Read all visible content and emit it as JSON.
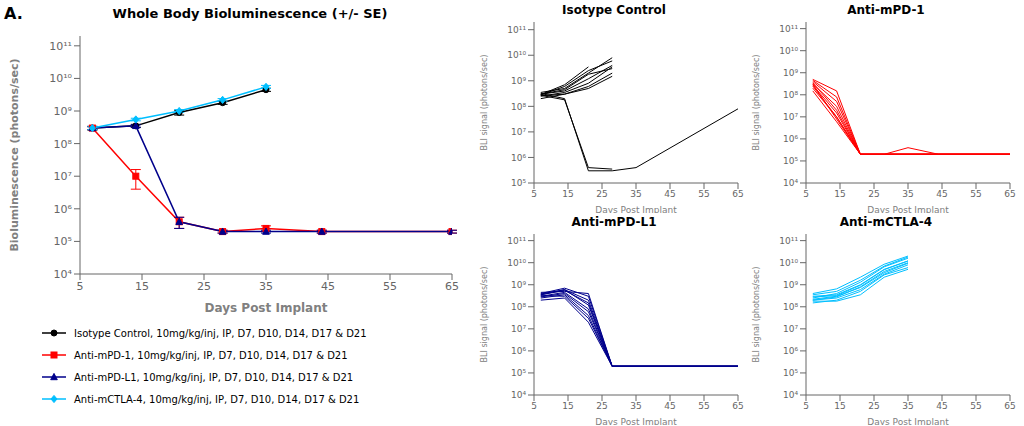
{
  "chart_data": [
    {
      "type": "line",
      "title": "Whole Body Bioluminescence (+/- SE)",
      "annotations": [
        "A."
      ],
      "x_label": "Days Post Implant",
      "y_label": "Bioluminescence (photons/sec)",
      "x": [
        7,
        14,
        21,
        28,
        35,
        44,
        65
      ],
      "log": "y",
      "grid": false,
      "legend": "bottom",
      "xlim": [
        5,
        65
      ],
      "xticks": [
        5,
        15,
        25,
        35,
        45,
        55,
        65
      ],
      "ylim": [
        10000.0,
        200000000000.0
      ],
      "yticks": [
        {
          "value": 10000.0,
          "label": "10⁴"
        },
        {
          "value": 100000.0,
          "label": "10⁵"
        },
        {
          "value": 1000000.0,
          "label": "10⁶"
        },
        {
          "value": 10000000.0,
          "label": "10⁷"
        },
        {
          "value": 100000000.0,
          "label": "10⁸"
        },
        {
          "value": 1000000000.0,
          "label": "10⁹"
        },
        {
          "value": 10000000000.0,
          "label": "10¹⁰"
        },
        {
          "value": 100000000000.0,
          "label": "10¹¹"
        }
      ],
      "series": [
        {
          "name": "Isotype Control, 10mg/kg/inj, IP, D7, D10, D14, D17 & D21",
          "color": "#000000",
          "marker": "circle",
          "values": [
            300000000.0,
            350000000.0,
            900000000.0,
            1800000000.0,
            4500000000.0,
            null,
            null
          ],
          "error_low": [
            40000000.0,
            40000000.0,
            150000000.0,
            200000000.0,
            500000000.0,
            null,
            null
          ],
          "error_high": [
            40000000.0,
            40000000.0,
            150000000.0,
            200000000.0,
            500000000.0,
            null,
            null
          ]
        },
        {
          "name": "Anti-mPD-1, 10mg/kg/inj, IP, D7, D10, D14, D17 & D21",
          "color": "#ff0000",
          "marker": "square",
          "values": [
            300000000.0,
            10000000.0,
            400000.0,
            200000.0,
            250000.0,
            200000.0,
            200000.0
          ],
          "error_low": [
            30000000.0,
            6000000.0,
            150000.0,
            20000.0,
            50000.0,
            20000.0,
            20000.0
          ],
          "error_high": [
            30000000.0,
            6000000.0,
            150000.0,
            20000.0,
            50000.0,
            20000.0,
            20000.0
          ]
        },
        {
          "name": "Anti-mPD-L1, 10mg/kg/inj, IP, D7, D10, D14, D17 & D21",
          "color": "#00008B",
          "marker": "triangle",
          "values": [
            300000000.0,
            350000000.0,
            400000.0,
            200000.0,
            200000.0,
            200000.0,
            200000.0
          ],
          "error_low": [
            30000000.0,
            30000000.0,
            150000.0,
            20000.0,
            20000.0,
            20000.0,
            20000.0
          ],
          "error_high": [
            30000000.0,
            30000000.0,
            150000.0,
            20000.0,
            20000.0,
            20000.0,
            20000.0
          ]
        },
        {
          "name": "Anti-mCTLA-4, 10mg/kg/inj, IP, D7, D10, D14, D17 & D21",
          "color": "#00BFFF",
          "marker": "diamond",
          "values": [
            300000000.0,
            550000000.0,
            1000000000.0,
            2200000000.0,
            5500000000.0,
            null,
            null
          ],
          "error_low": [
            30000000.0,
            50000000.0,
            100000000.0,
            200000000.0,
            600000000.0,
            null,
            null
          ],
          "error_high": [
            30000000.0,
            50000000.0,
            100000000.0,
            200000000.0,
            600000000.0,
            null,
            null
          ]
        }
      ]
    },
    {
      "type": "line",
      "title": "Isotype Control",
      "x_label": "Days Post Implant",
      "y_label": "BLI signal (photons/sec)",
      "x": [
        7,
        14,
        21,
        28,
        35,
        44,
        65
      ],
      "log": "y",
      "grid": false,
      "xlim": [
        5,
        65
      ],
      "xticks": [
        5,
        15,
        25,
        35,
        45,
        55,
        65
      ],
      "ylim": [
        100000.0,
        200000000000.0
      ],
      "yticks": [
        {
          "value": 100000.0,
          "label": "10⁵"
        },
        {
          "value": 1000000.0,
          "label": "10⁶"
        },
        {
          "value": 10000000.0,
          "label": "10⁷"
        },
        {
          "value": 100000000.0,
          "label": "10⁸"
        },
        {
          "value": 1000000000.0,
          "label": "10⁹"
        },
        {
          "value": 10000000000.0,
          "label": "10¹⁰"
        },
        {
          "value": 100000000000.0,
          "label": "10¹¹"
        }
      ],
      "series": [
        {
          "color": "#000000",
          "values": [
            300000000.0,
            400000000.0,
            1200000000.0,
            4000000000.0,
            null,
            null,
            null
          ]
        },
        {
          "color": "#000000",
          "values": [
            250000000.0,
            350000000.0,
            800000000.0,
            3500000000.0,
            null,
            null,
            null
          ]
        },
        {
          "color": "#000000",
          "values": [
            280000000.0,
            600000000.0,
            2500000000.0,
            6000000000.0,
            null,
            null,
            null
          ]
        },
        {
          "color": "#000000",
          "values": [
            350000000.0,
            500000000.0,
            2000000000.0,
            8000000000.0,
            null,
            null,
            null
          ]
        },
        {
          "color": "#000000",
          "values": [
            200000000.0,
            300000000.0,
            600000000.0,
            2000000000.0,
            null,
            null,
            null
          ]
        },
        {
          "color": "#000000",
          "values": [
            320000000.0,
            200000000.0,
            300000.0,
            300000.0,
            400000.0,
            null,
            80000000.0
          ]
        },
        {
          "color": "#000000",
          "values": [
            270000000.0,
            180000000.0,
            400000.0,
            350000.0,
            null,
            null,
            null
          ]
        },
        {
          "color": "#000000",
          "values": [
            300000000.0,
            450000000.0,
            1800000000.0,
            3000000000.0,
            null,
            null,
            null
          ]
        },
        {
          "color": "#000000",
          "values": [
            290000000.0,
            700000000.0,
            3500000000.0,
            null,
            null,
            null,
            null
          ]
        },
        {
          "color": "#000000",
          "values": [
            260000000.0,
            300000000.0,
            500000000.0,
            1500000000.0,
            null,
            null,
            null
          ]
        }
      ]
    },
    {
      "type": "line",
      "title": "Anti-mPD-1",
      "x_label": "Days Post Implant",
      "y_label": "BLI signal (photons/sec)",
      "x": [
        7,
        14,
        21,
        28,
        35,
        44,
        65
      ],
      "log": "y",
      "grid": false,
      "xlim": [
        5,
        65
      ],
      "xticks": [
        5,
        15,
        25,
        35,
        45,
        55,
        65
      ],
      "ylim": [
        10000.0,
        200000000000.0
      ],
      "yticks": [
        {
          "value": 10000.0,
          "label": "10⁴"
        },
        {
          "value": 100000.0,
          "label": "10⁵"
        },
        {
          "value": 1000000.0,
          "label": "10⁶"
        },
        {
          "value": 10000000.0,
          "label": "10⁷"
        },
        {
          "value": 100000000.0,
          "label": "10⁸"
        },
        {
          "value": 1000000000.0,
          "label": "10⁹"
        },
        {
          "value": 10000000000.0,
          "label": "10¹⁰"
        },
        {
          "value": 100000000000.0,
          "label": "10¹¹"
        }
      ],
      "series": [
        {
          "color": "#ff0000",
          "values": [
            500000000.0,
            150000000.0,
            200000.0,
            200000.0,
            200000.0,
            200000.0,
            200000.0
          ]
        },
        {
          "color": "#ff0000",
          "values": [
            400000000.0,
            50000000.0,
            200000.0,
            200000.0,
            200000.0,
            200000.0,
            200000.0
          ]
        },
        {
          "color": "#ff0000",
          "values": [
            350000000.0,
            20000000.0,
            200000.0,
            200000.0,
            200000.0,
            200000.0,
            200000.0
          ]
        },
        {
          "color": "#ff0000",
          "values": [
            280000000.0,
            15000000.0,
            200000.0,
            200000.0,
            200000.0,
            200000.0,
            200000.0
          ]
        },
        {
          "color": "#ff0000",
          "values": [
            250000000.0,
            10000000.0,
            200000.0,
            200000.0,
            400000.0,
            200000.0,
            200000.0
          ]
        },
        {
          "color": "#ff0000",
          "values": [
            300000000.0,
            8000000.0,
            200000.0,
            200000.0,
            200000.0,
            200000.0,
            200000.0
          ]
        },
        {
          "color": "#ff0000",
          "values": [
            200000000.0,
            10000000.0,
            200000.0,
            200000.0,
            200000.0,
            200000.0,
            200000.0
          ]
        },
        {
          "color": "#ff0000",
          "values": [
            150000000.0,
            6000000.0,
            200000.0,
            200000.0,
            200000.0,
            200000.0,
            200000.0
          ]
        },
        {
          "color": "#ff0000",
          "values": [
            320000000.0,
            30000000.0,
            200000.0,
            200000.0,
            200000.0,
            200000.0,
            200000.0
          ]
        },
        {
          "color": "#ff0000",
          "values": [
            450000000.0,
            80000000.0,
            200000.0,
            200000.0,
            200000.0,
            200000.0,
            200000.0
          ]
        }
      ]
    },
    {
      "type": "line",
      "title": "Anti-mPD-L1",
      "x_label": "Days Post Implant",
      "y_label": "BLI signal (photons/sec)",
      "x": [
        7,
        14,
        21,
        28,
        35,
        44,
        65
      ],
      "log": "y",
      "grid": false,
      "xlim": [
        5,
        65
      ],
      "xticks": [
        5,
        15,
        25,
        35,
        45,
        55,
        65
      ],
      "ylim": [
        10000.0,
        200000000000.0
      ],
      "yticks": [
        {
          "value": 10000.0,
          "label": "10⁴"
        },
        {
          "value": 100000.0,
          "label": "10⁵"
        },
        {
          "value": 1000000.0,
          "label": "10⁶"
        },
        {
          "value": 10000000.0,
          "label": "10⁷"
        },
        {
          "value": 100000000.0,
          "label": "10⁸"
        },
        {
          "value": 1000000000.0,
          "label": "10⁹"
        },
        {
          "value": 10000000000.0,
          "label": "10¹⁰"
        },
        {
          "value": 100000000000.0,
          "label": "10¹¹"
        }
      ],
      "series": [
        {
          "color": "#00008B",
          "values": [
            450000000.0,
            500000000.0,
            400000000.0,
            200000.0,
            200000.0,
            200000.0,
            200000.0
          ]
        },
        {
          "color": "#00008B",
          "values": [
            350000000.0,
            600000000.0,
            200000000.0,
            200000.0,
            200000.0,
            200000.0,
            200000.0
          ]
        },
        {
          "color": "#00008B",
          "values": [
            300000000.0,
            450000000.0,
            80000000.0,
            200000.0,
            200000.0,
            200000.0,
            200000.0
          ]
        },
        {
          "color": "#00008B",
          "values": [
            250000000.0,
            350000000.0,
            40000000.0,
            200000.0,
            200000.0,
            200000.0,
            200000.0
          ]
        },
        {
          "color": "#00008B",
          "values": [
            200000000.0,
            250000000.0,
            20000000.0,
            200000.0,
            200000.0,
            200000.0,
            200000.0
          ]
        },
        {
          "color": "#00008B",
          "values": [
            350000000.0,
            550000000.0,
            150000000.0,
            200000.0,
            200000.0,
            200000.0,
            200000.0
          ]
        },
        {
          "color": "#00008B",
          "values": [
            280000000.0,
            400000000.0,
            60000000.0,
            200000.0,
            200000.0,
            200000.0,
            200000.0
          ]
        },
        {
          "color": "#00008B",
          "values": [
            320000000.0,
            300000000.0,
            30000000.0,
            200000.0,
            200000.0,
            200000.0,
            200000.0
          ]
        },
        {
          "color": "#00008B",
          "values": [
            400000000.0,
            700000000.0,
            300000000.0,
            200000.0,
            200000.0,
            200000.0,
            200000.0
          ]
        },
        {
          "color": "#00008B",
          "values": [
            380000000.0,
            600000000.0,
            120000000.0,
            200000.0,
            200000.0,
            200000.0,
            200000.0
          ]
        }
      ]
    },
    {
      "type": "line",
      "title": "Anti-mCTLA-4",
      "x_label": "Days Post Implant",
      "y_label": "BLI signal (photons/sec)",
      "x": [
        7,
        14,
        21,
        28,
        35,
        44,
        65
      ],
      "log": "y",
      "grid": false,
      "xlim": [
        5,
        65
      ],
      "xticks": [
        5,
        15,
        25,
        35,
        45,
        55,
        65
      ],
      "ylim": [
        10000.0,
        200000000000.0
      ],
      "yticks": [
        {
          "value": 10000.0,
          "label": "10⁴"
        },
        {
          "value": 100000.0,
          "label": "10⁵"
        },
        {
          "value": 1000000.0,
          "label": "10⁶"
        },
        {
          "value": 10000000.0,
          "label": "10⁷"
        },
        {
          "value": 100000000.0,
          "label": "10⁸"
        },
        {
          "value": 1000000000.0,
          "label": "10⁹"
        },
        {
          "value": 10000000000.0,
          "label": "10¹⁰"
        },
        {
          "value": 100000000000.0,
          "label": "10¹¹"
        }
      ],
      "series": [
        {
          "color": "#00BFFF",
          "values": [
            200000000.0,
            250000000.0,
            600000000.0,
            3000000000.0,
            8000000000.0,
            null,
            null
          ]
        },
        {
          "color": "#00BFFF",
          "values": [
            150000000.0,
            200000000.0,
            500000000.0,
            2800000000.0,
            6000000000.0,
            null,
            null
          ]
        },
        {
          "color": "#00BFFF",
          "values": [
            300000000.0,
            350000000.0,
            1000000000.0,
            5000000000.0,
            12000000000.0,
            null,
            null
          ]
        },
        {
          "color": "#00BFFF",
          "values": [
            250000000.0,
            400000000.0,
            1300000000.0,
            6500000000.0,
            16000000000.0,
            null,
            null
          ]
        },
        {
          "color": "#00BFFF",
          "values": [
            200000000.0,
            280000000.0,
            800000000.0,
            4000000000.0,
            10000000000.0,
            null,
            null
          ]
        },
        {
          "color": "#00BFFF",
          "values": [
            350000000.0,
            500000000.0,
            1600000000.0,
            7000000000.0,
            18000000000.0,
            null,
            null
          ]
        },
        {
          "color": "#00BFFF",
          "values": [
            180000000.0,
            180000000.0,
            350000000.0,
            2200000000.0,
            5000000000.0,
            null,
            null
          ]
        },
        {
          "color": "#00BFFF",
          "values": [
            280000000.0,
            320000000.0,
            950000000.0,
            4800000000.0,
            12000000000.0,
            null,
            null
          ]
        },
        {
          "color": "#00BFFF",
          "values": [
            220000000.0,
            300000000.0,
            750000000.0,
            3500000000.0,
            9500000000.0,
            null,
            null
          ]
        },
        {
          "color": "#00BFFF",
          "values": [
            400000000.0,
            650000000.0,
            2200000000.0,
            8500000000.0,
            20000000000.0,
            null,
            null
          ]
        }
      ]
    }
  ]
}
